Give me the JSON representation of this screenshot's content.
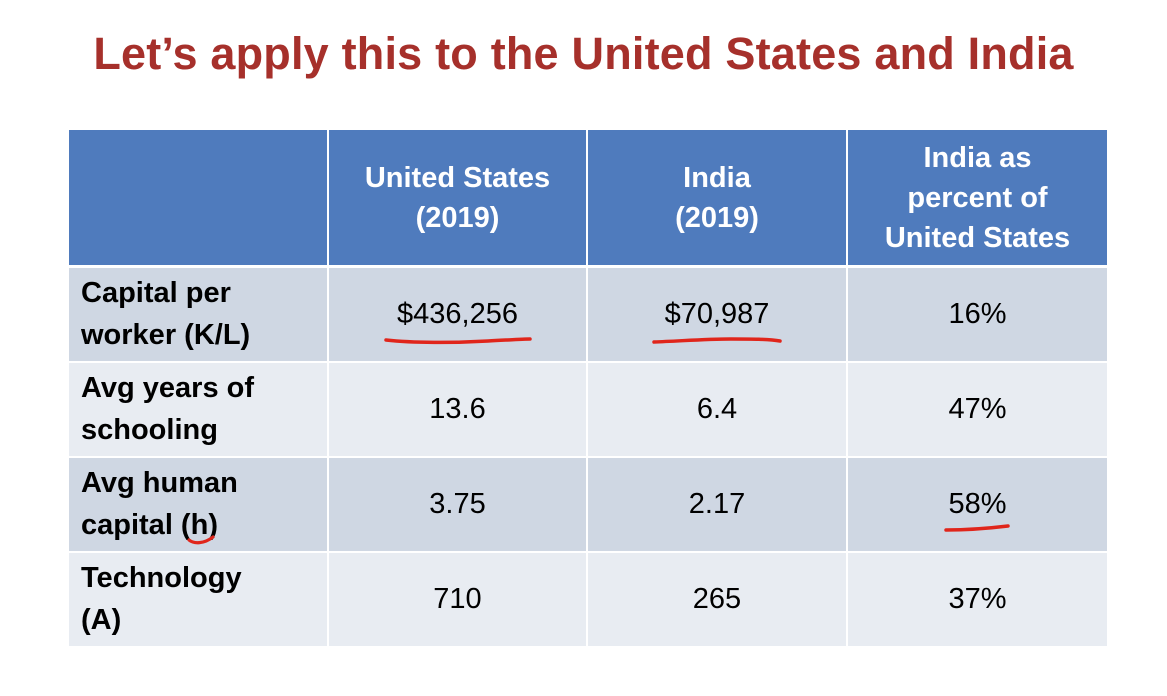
{
  "slide": {
    "title": "Let’s apply this to the United States and India"
  },
  "table": {
    "header": {
      "blank": "",
      "us_line1": "United States",
      "us_line2": "(2019)",
      "india_line1": "India",
      "india_line2": "(2019)",
      "pct_line1": "India as",
      "pct_line2": "percent of",
      "pct_line3": "United States"
    },
    "rows": [
      {
        "label_line1": "Capital per",
        "label_line2": "worker (K/L)",
        "us": "$436,256",
        "india": "$70,987",
        "pct": "16%"
      },
      {
        "label_line1": "Avg years of",
        "label_line2": "schooling",
        "us": "13.6",
        "india": "6.4",
        "pct": "47%"
      },
      {
        "label_line1": "Avg human",
        "label_line2_prefix": "capital (",
        "label_line2_var": "h",
        "label_line2_suffix": ")",
        "us": "3.75",
        "india": "2.17",
        "pct": "58%"
      },
      {
        "label_line1": "Technology",
        "label_line2": "(A)",
        "us": "710",
        "india": "265",
        "pct": "37%"
      }
    ]
  },
  "colors": {
    "title": "#a6302b",
    "header_bg": "#4f7bbd",
    "row_dark": "#cfd7e3",
    "row_light": "#e8ecf2",
    "annotation_ink": "#e0251b"
  }
}
